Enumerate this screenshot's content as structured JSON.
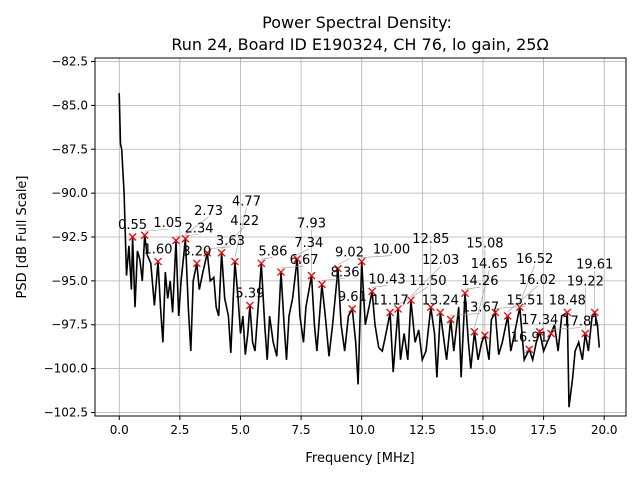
{
  "chart_data": {
    "type": "line",
    "title": "Power Spectral Density:\nRun 24, Board ID E190324, CH 76, lo gain, 25Ω",
    "title_lines": [
      "Power Spectral Density:",
      "Run 24, Board ID E190324, CH 76, lo gain, 25Ω"
    ],
    "xlabel": "Frequency [MHz]",
    "ylabel": "PSD [dB Full Scale]",
    "xlim": [
      -1,
      20.9
    ],
    "ylim": [
      -102.7,
      -82.3
    ],
    "xticks": [
      0.0,
      2.5,
      5.0,
      7.5,
      10.0,
      12.5,
      15.0,
      17.5,
      20.0
    ],
    "xtick_labels": [
      "0.0",
      "2.5",
      "5.0",
      "7.5",
      "10.0",
      "12.5",
      "15.0",
      "17.5",
      "20.0"
    ],
    "yticks": [
      -82.5,
      -85.0,
      -87.5,
      -90.0,
      -92.5,
      -95.0,
      -97.5,
      -100.0,
      -102.5
    ],
    "ytick_labels": [
      "−82.5",
      "−85.0",
      "−87.5",
      "−90.0",
      "−92.5",
      "−95.0",
      "−97.5",
      "−100.0",
      "−102.5"
    ],
    "grid": true,
    "line_color": "#000000",
    "marker_color": "#ff0000",
    "series": [
      {
        "x": [
          0,
          0.05,
          0.1,
          0.2,
          0.3,
          0.4,
          0.5,
          0.55,
          0.65,
          0.75,
          0.85,
          0.95,
          1.05,
          1.15,
          1.3,
          1.45,
          1.6,
          1.7,
          1.8,
          1.9,
          2.0,
          2.1,
          2.2,
          2.34,
          2.45,
          2.55,
          2.73,
          2.85,
          2.95,
          3.05,
          3.2,
          3.3,
          3.45,
          3.63,
          3.75,
          3.9,
          4.0,
          4.1,
          4.22,
          4.35,
          4.5,
          4.6,
          4.77,
          4.9,
          5.0,
          5.1,
          5.2,
          5.3,
          5.39,
          5.5,
          5.6,
          5.7,
          5.86,
          6.0,
          6.1,
          6.2,
          6.35,
          6.5,
          6.67,
          6.8,
          6.9,
          7.0,
          7.15,
          7.34,
          7.45,
          7.6,
          7.7,
          7.93,
          8.05,
          8.15,
          8.36,
          8.5,
          8.65,
          8.8,
          9.02,
          9.15,
          9.3,
          9.45,
          9.61,
          9.75,
          9.85,
          10.0,
          10.15,
          10.3,
          10.43,
          10.55,
          10.7,
          10.85,
          11.0,
          11.17,
          11.3,
          11.5,
          11.6,
          11.75,
          11.9,
          12.03,
          12.2,
          12.35,
          12.5,
          12.65,
          12.85,
          13.0,
          13.1,
          13.24,
          13.4,
          13.5,
          13.67,
          13.8,
          14.0,
          14.1,
          14.26,
          14.4,
          14.5,
          14.65,
          14.8,
          14.95,
          15.08,
          15.25,
          15.35,
          15.51,
          15.65,
          15.8,
          16.02,
          16.15,
          16.3,
          16.52,
          16.7,
          16.91,
          17.05,
          17.2,
          17.34,
          17.5,
          17.65,
          17.81,
          17.95,
          18.1,
          18.25,
          18.48,
          18.55,
          18.7,
          18.8,
          18.95,
          19.1,
          19.22,
          19.35,
          19.5,
          19.61,
          19.72,
          19.8
        ],
        "y": [
          -84.3,
          -87.2,
          -87.5,
          -90,
          -94.7,
          -93,
          -95.5,
          -92.5,
          -96.5,
          -93.3,
          -93.8,
          -95,
          -92.4,
          -93.5,
          -94,
          -96.4,
          -93.9,
          -96.5,
          -98.5,
          -94.5,
          -96,
          -95,
          -96.8,
          -92.7,
          -97,
          -95,
          -92.6,
          -96.5,
          -99,
          -95,
          -94,
          -95.5,
          -94.5,
          -93.4,
          -95,
          -94.8,
          -96.5,
          -97,
          -93.4,
          -96,
          -97,
          -99.1,
          -93.9,
          -96,
          -98,
          -97,
          -99.2,
          -98,
          -96.4,
          -98.5,
          -99,
          -97,
          -94,
          -97.5,
          -99.5,
          -97,
          -98.5,
          -99.3,
          -94.5,
          -97.5,
          -99.5,
          -97,
          -96,
          -93.75,
          -97,
          -98.5,
          -96.5,
          -94.7,
          -97.5,
          -99,
          -95.2,
          -97,
          -99.3,
          -97.5,
          -94.3,
          -97.5,
          -99,
          -97,
          -96.6,
          -98.5,
          -100.9,
          -93.9,
          -97.5,
          -96.5,
          -95.6,
          -97.5,
          -98.8,
          -99,
          -98,
          -96.8,
          -100.2,
          -96.6,
          -99.5,
          -98,
          -99.5,
          -96.1,
          -98.5,
          -97.8,
          -99.5,
          -99,
          -96.5,
          -98,
          -100.5,
          -96.8,
          -98.5,
          -99.5,
          -97.2,
          -99,
          -96.5,
          -100.5,
          -95.7,
          -98.5,
          -100,
          -97.9,
          -99.5,
          -98.5,
          -98.1,
          -99.5,
          -97.2,
          -96.8,
          -99.2,
          -98.5,
          -97,
          -99,
          -98,
          -96.5,
          -99.5,
          -98.9,
          -99.5,
          -98.5,
          -97.9,
          -99,
          -98.5,
          -98,
          -97.5,
          -99,
          -97,
          -96.8,
          -102.2,
          -100.5,
          -99,
          -98.5,
          -99.5,
          -98,
          -99,
          -97,
          -96.8,
          -97.5,
          -98.8
        ]
      }
    ],
    "peaks": {
      "x": [
        0.55,
        1.05,
        1.6,
        2.34,
        2.73,
        3.2,
        3.63,
        4.22,
        4.77,
        5.39,
        5.86,
        6.67,
        7.34,
        7.93,
        8.36,
        9.02,
        9.61,
        10.0,
        10.43,
        11.17,
        11.5,
        12.03,
        12.85,
        13.24,
        13.67,
        14.26,
        14.65,
        15.08,
        15.51,
        16.02,
        16.52,
        16.91,
        17.34,
        17.81,
        18.48,
        19.22,
        19.61
      ],
      "y": [
        -92.5,
        -92.4,
        -93.9,
        -92.7,
        -92.6,
        -94.0,
        -93.4,
        -93.4,
        -93.9,
        -96.4,
        -94.0,
        -94.5,
        -93.75,
        -94.7,
        -95.2,
        -94.3,
        -96.6,
        -93.9,
        -95.6,
        -96.8,
        -96.6,
        -96.1,
        -96.5,
        -96.8,
        -97.2,
        -95.7,
        -97.9,
        -98.1,
        -96.8,
        -97.0,
        -96.5,
        -98.9,
        -97.9,
        -98.0,
        -96.8,
        -98.0,
        -96.8
      ],
      "labels": [
        "0.55",
        "1.05",
        "1.60",
        "2.34",
        "2.73",
        "3.20",
        "3.63",
        "4.22",
        "4.77",
        "5.39",
        "5.86",
        "6.67",
        "7.34",
        "7.93",
        "8.36",
        "9.02",
        "9.61",
        "10.00",
        "10.43",
        "11.17",
        "11.50",
        "12.03",
        "12.85",
        "13.24",
        "13.67",
        "14.26",
        "14.65",
        "15.08",
        "15.51",
        "16.02",
        "16.52",
        "16.91",
        "17.34",
        "17.81",
        "18.48",
        "19.22",
        "19.61"
      ]
    }
  }
}
